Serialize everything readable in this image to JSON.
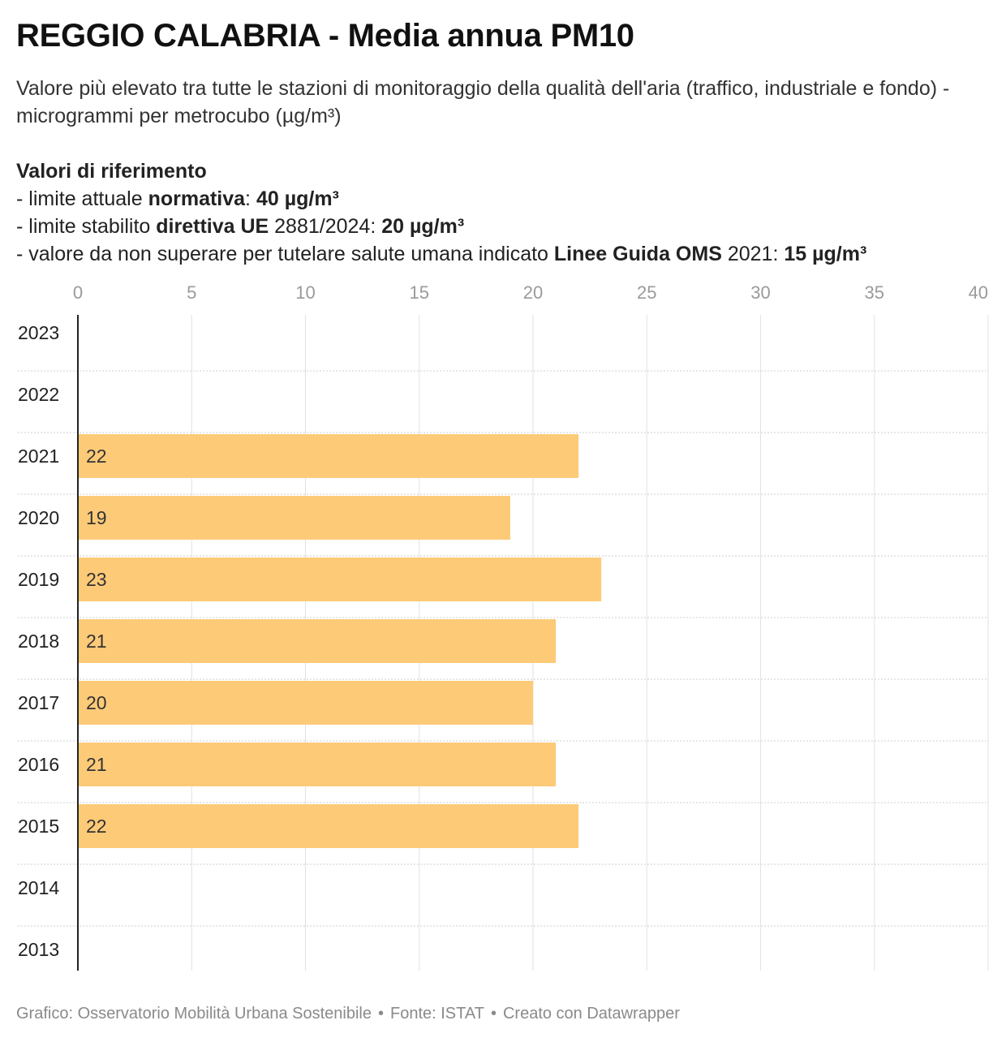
{
  "title": "REGGIO CALABRIA - Media annua PM10",
  "subtitle": "Valore più elevato tra tutte le stazioni di monitoraggio della qualità dell'aria (traffico, industriale e fondo) - microgrammi per metrocubo (µg/m³)",
  "references": {
    "heading": "Valori di riferimento",
    "line1": {
      "prefix": "- limite attuale ",
      "bold": "normativa",
      "mid": ": ",
      "value": "40 µg/m³"
    },
    "line2": {
      "prefix": "- limite stabilito ",
      "bold": "direttiva UE",
      "mid": " 2881/2024: ",
      "value": "20 µg/m³"
    },
    "line3": {
      "prefix": "- valore da non superare per tutelare salute umana indicato ",
      "bold": "Linee Guida OMS",
      "mid": " 2021: ",
      "value": "15 µg/m³"
    }
  },
  "chart_data": {
    "type": "bar",
    "orientation": "horizontal",
    "categories": [
      "2023",
      "2022",
      "2021",
      "2020",
      "2019",
      "2018",
      "2017",
      "2016",
      "2015",
      "2014",
      "2013"
    ],
    "values": [
      null,
      null,
      22,
      19,
      23,
      21,
      20,
      21,
      22,
      null,
      null
    ],
    "data_labels": [
      "",
      "",
      "22",
      "19",
      "23",
      "21",
      "20",
      "21",
      "22",
      "",
      ""
    ],
    "xlim": [
      0,
      40
    ],
    "xticks": [
      0,
      5,
      10,
      15,
      20,
      25,
      30,
      35,
      40
    ],
    "xtick_labels": [
      "0",
      "5",
      "10",
      "15",
      "20",
      "25",
      "30",
      "35",
      "40"
    ],
    "axis_position": "top",
    "grid": true,
    "bar_color": "#fdca78"
  },
  "footer": {
    "credit": "Grafico: Osservatorio Mobilità Urbana Sostenibile",
    "source": "Fonte: ISTAT",
    "tool": "Creato con Datawrapper",
    "separator": "•"
  }
}
